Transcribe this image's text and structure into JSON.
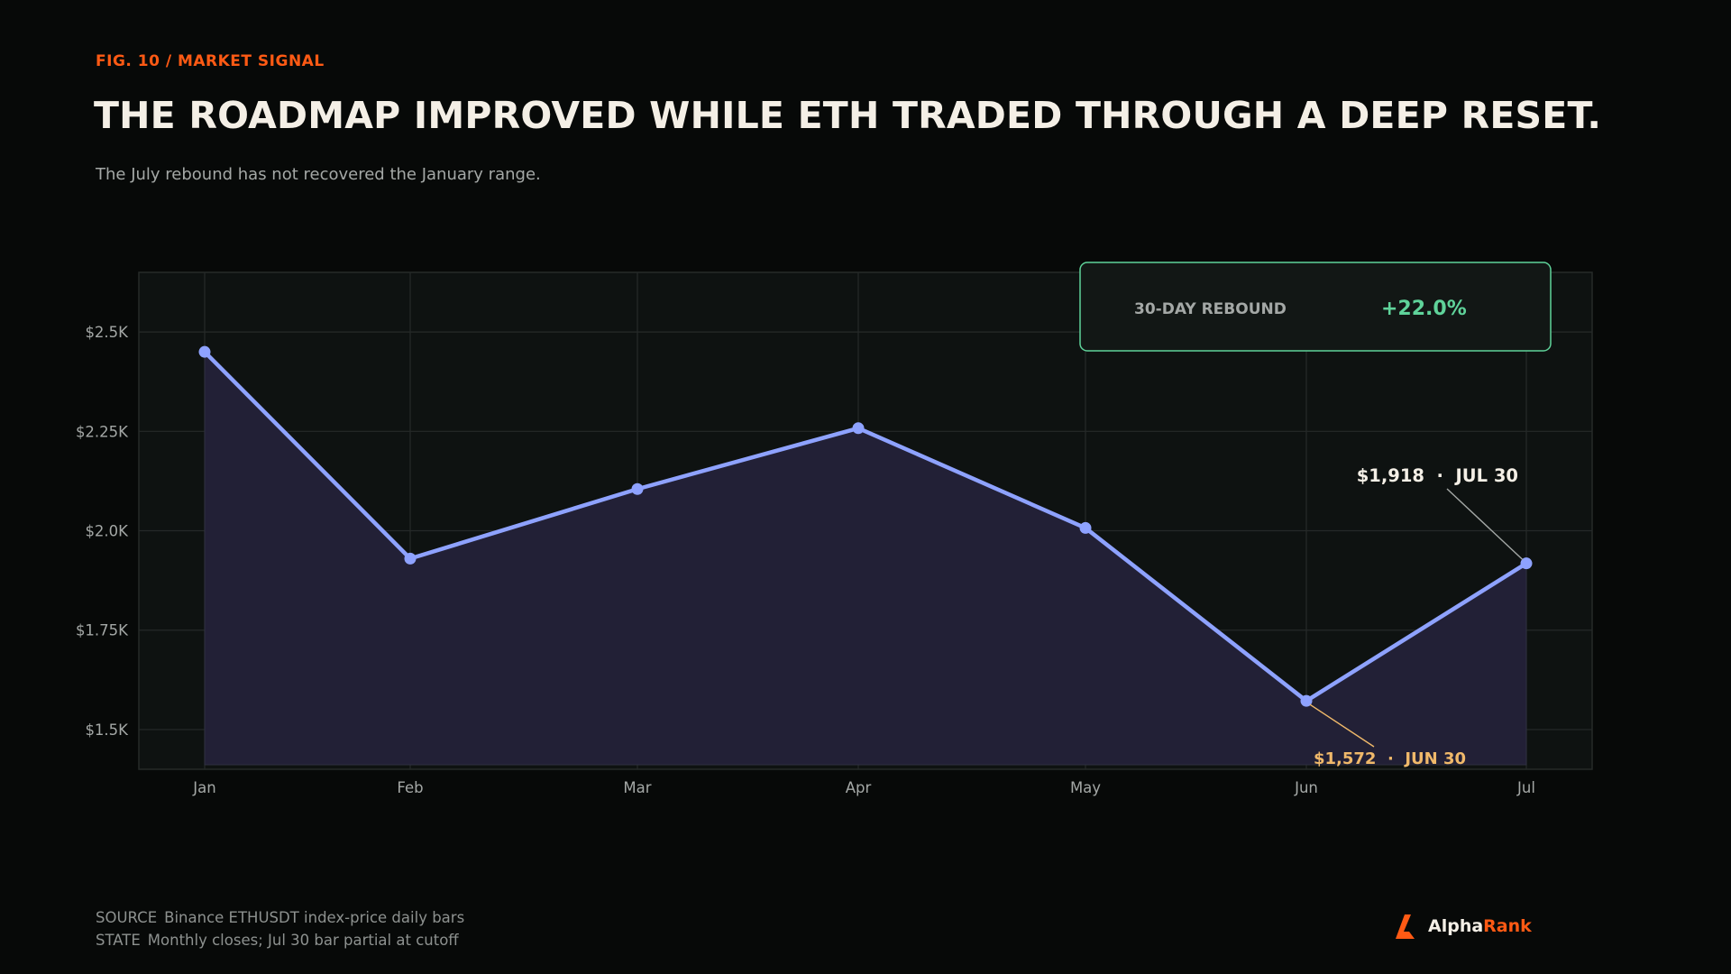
{
  "header": {
    "eyebrow": "FIG. 10 / MARKET SIGNAL",
    "title": "THE ROADMAP IMPROVED WHILE ETH TRADED THROUGH A DEEP RESET.",
    "subtitle": "The July rebound has not recovered the January range."
  },
  "colors": {
    "accent": "#ff5a14",
    "line": "#8ea2ff",
    "positive": "#5fd39a",
    "callout_low": "#f0b96a",
    "text": "#f4efe6",
    "muted": "#a4a8a6"
  },
  "chart_data": {
    "type": "line",
    "categories": [
      "Jan",
      "Feb",
      "Mar",
      "Apr",
      "May",
      "Jun",
      "Jul"
    ],
    "series": [
      {
        "values": [
          2450,
          1930,
          2105,
          2258,
          2007,
          1572,
          1918
        ]
      }
    ],
    "ylim": [
      1400,
      2650
    ],
    "yticks": [
      1500,
      1750,
      2000,
      2250,
      2500
    ],
    "ytick_labels": [
      "$1.5K",
      "$1.75K",
      "$2.0K",
      "$2.25K",
      "$2.5K"
    ],
    "grid": true,
    "area_fill": true,
    "annotations": [
      {
        "category": "Jul",
        "value": 1918,
        "price": "$1,918",
        "sep": "·",
        "date": "JUL 30",
        "style": "high"
      },
      {
        "category": "Jun",
        "value": 1572,
        "price": "$1,572",
        "sep": "·",
        "date": "JUN 30",
        "style": "low"
      }
    ],
    "kpi": {
      "label": "30-DAY REBOUND",
      "value": "+22.0%"
    }
  },
  "footer": {
    "source_key": "SOURCE",
    "source_text": "Binance ETHUSDT index-price daily bars",
    "state_key": "STATE",
    "state_text": "Monthly closes; Jul 30 bar partial at cutoff"
  },
  "brand": {
    "part1": "Alpha",
    "part2": "Rank",
    "logo_icon": "alpharank-logo-icon"
  }
}
